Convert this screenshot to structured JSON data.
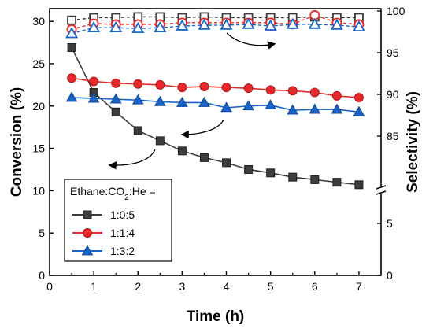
{
  "chart_data": {
    "type": "line",
    "x": [
      0.5,
      1,
      1.5,
      2,
      2.5,
      3,
      3.5,
      4,
      4.5,
      5,
      5.5,
      6,
      6.5,
      7
    ],
    "xlabel": "Time (h)",
    "ylabel_left": "Conversion (%)",
    "ylabel_right": "Selectivity (%)",
    "xlim": [
      0,
      7.5
    ],
    "xticks": [
      "0",
      "1",
      "2",
      "3",
      "4",
      "5",
      "6",
      "7"
    ],
    "yticks_left": [
      "0",
      "5",
      "10",
      "15",
      "20",
      "25",
      "30"
    ],
    "ylim_left": [
      0,
      31.5
    ],
    "right_axis": {
      "broken": true,
      "lower_ticks": [
        "0",
        "5"
      ],
      "upper_ticks": [
        "85",
        "90",
        "95",
        "100"
      ],
      "upper_range": [
        80,
        100
      ]
    },
    "legend": {
      "title_prefix": "Ethane:CO",
      "title_sub": "2",
      "title_suffix": ":He =",
      "placement": "lower-left"
    },
    "series": [
      {
        "name": "1:0:5",
        "color": "#3c3c3c",
        "marker": "square",
        "conversion": [
          26.9,
          21.6,
          19.3,
          17.1,
          15.9,
          14.7,
          13.9,
          13.3,
          12.5,
          12.1,
          11.6,
          11.3,
          11.0,
          10.7
        ],
        "selectivity": [
          98.9,
          99.2,
          99.2,
          99.3,
          99.3,
          99.2,
          99.3,
          99.2,
          99.2,
          99.2,
          99.2,
          99.3,
          99.2,
          99.2
        ]
      },
      {
        "name": "1:1:4",
        "color": "#e8292c",
        "marker": "circle",
        "conversion": [
          23.3,
          22.9,
          22.7,
          22.6,
          22.5,
          22.2,
          22.3,
          22.2,
          22.1,
          21.9,
          21.8,
          21.6,
          21.2,
          21.0
        ],
        "selectivity": [
          97.8,
          98.5,
          98.4,
          98.4,
          98.4,
          98.6,
          98.6,
          98.6,
          98.6,
          98.6,
          98.4,
          99.5,
          98.6,
          98.4
        ]
      },
      {
        "name": "1:3:2",
        "color": "#1a64c8",
        "marker": "triangle",
        "conversion": [
          21.0,
          20.9,
          20.8,
          20.7,
          20.5,
          20.4,
          20.4,
          19.8,
          20.0,
          20.1,
          19.5,
          19.6,
          19.6,
          19.3
        ],
        "selectivity": [
          97.3,
          98.0,
          98.0,
          97.9,
          98.0,
          98.2,
          98.3,
          98.3,
          98.4,
          98.2,
          98.4,
          98.4,
          98.3,
          98.1
        ]
      }
    ]
  }
}
